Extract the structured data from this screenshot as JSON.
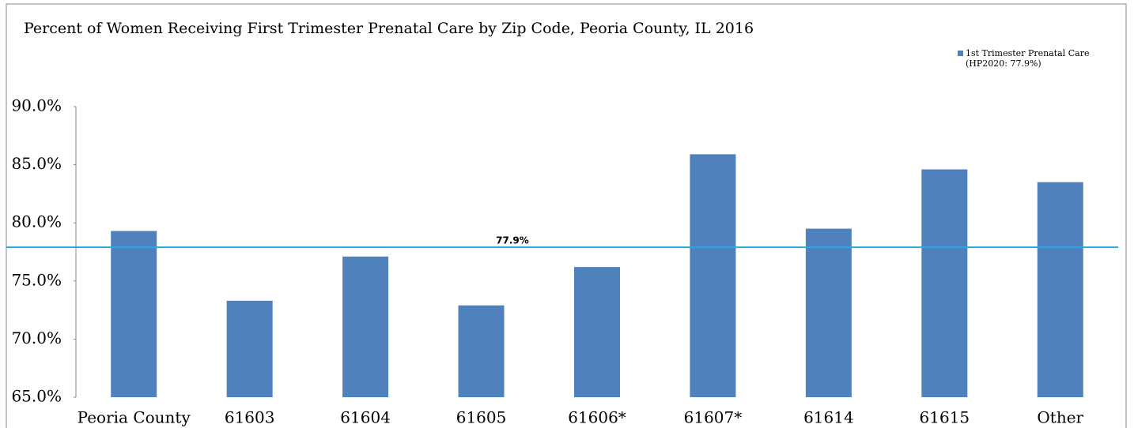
{
  "chart_data": {
    "type": "bar",
    "title": "Percent of Women Receiving First Trimester Prenatal Care by Zip Code, Peoria County, IL 2016",
    "categories": [
      "Peoria County",
      "61603",
      "61604",
      "61605",
      "61606*",
      "61607*",
      "61614",
      "61615",
      "Other"
    ],
    "series": [
      {
        "name": "1st Trimester Prenatal Care (HP2020: 77.9%)",
        "color": "#4f81bd",
        "values": [
          79.3,
          73.3,
          77.1,
          72.9,
          76.2,
          85.9,
          79.5,
          84.6,
          83.5
        ]
      }
    ],
    "reference_line": {
      "value": 77.9,
      "label": "77.9%",
      "color": "#29a9e0"
    },
    "ylim": [
      65,
      90
    ],
    "yticks": [
      {
        "value": 65,
        "label": "65.0%"
      },
      {
        "value": 70,
        "label": "70.0%"
      },
      {
        "value": 75,
        "label": "75.0%"
      },
      {
        "value": 80,
        "label": "80.0%"
      },
      {
        "value": 85,
        "label": "85.0%"
      },
      {
        "value": 90,
        "label": "90.0%"
      }
    ],
    "grid": false,
    "legend": "top-right"
  }
}
